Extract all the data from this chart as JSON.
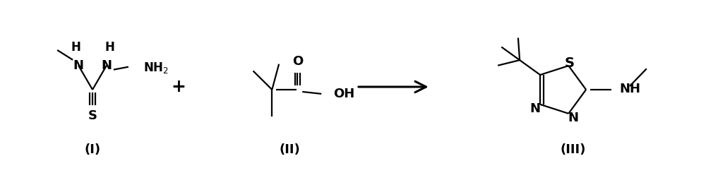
{
  "bg_color": "#ffffff",
  "label_I": "(I)",
  "label_II": "(II)",
  "label_III": "(III)",
  "text_color": "#000000",
  "font_size_atom": 12,
  "font_size_label": 13,
  "font_weight": "bold",
  "fig_width": 10.0,
  "fig_height": 2.45,
  "dpi": 100,
  "lw": 1.6
}
